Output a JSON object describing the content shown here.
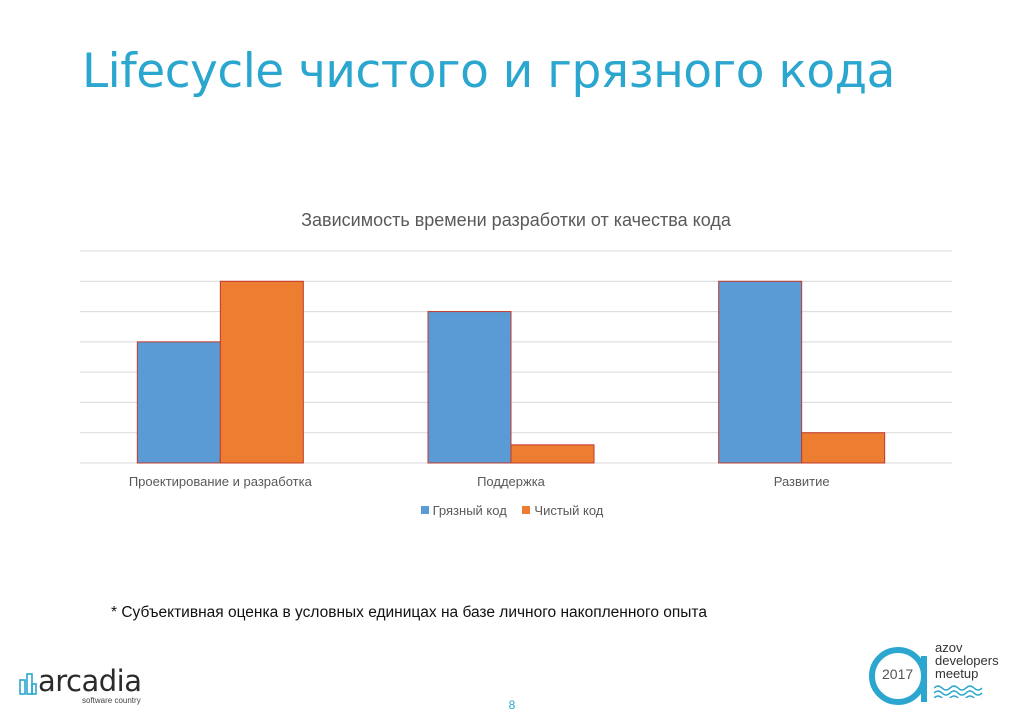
{
  "slide": {
    "title": "Lifecycle чистого и грязного кода",
    "footnote": "* Субъективная оценка в условных единицах на базе личного накопленного опыта",
    "page_number": "8"
  },
  "logos": {
    "left": {
      "name": "arcadia",
      "tagline": "software country"
    },
    "right": {
      "year": "2017",
      "lines": [
        "azov",
        "developers",
        "meetup"
      ]
    }
  },
  "colors": {
    "title": "#2aa6cf",
    "series_dirty": "#5b9bd5",
    "series_clean": "#ed7d31",
    "bar_outline": "#c0392b",
    "grid": "#d9d9d9",
    "text": "#595959"
  },
  "chart_data": {
    "type": "bar",
    "title": "Зависимость времени разработки от качества кода",
    "categories": [
      "Проектирование и разработка",
      "Поддержка",
      "Развитие"
    ],
    "series": [
      {
        "name": "Грязный код",
        "values": [
          4,
          5,
          6
        ]
      },
      {
        "name": "Чистый код",
        "values": [
          6,
          0.6,
          1
        ]
      }
    ],
    "ylim": [
      0,
      7
    ],
    "y_tick_labels_shown": false,
    "grid": true,
    "legend": "bottom"
  }
}
